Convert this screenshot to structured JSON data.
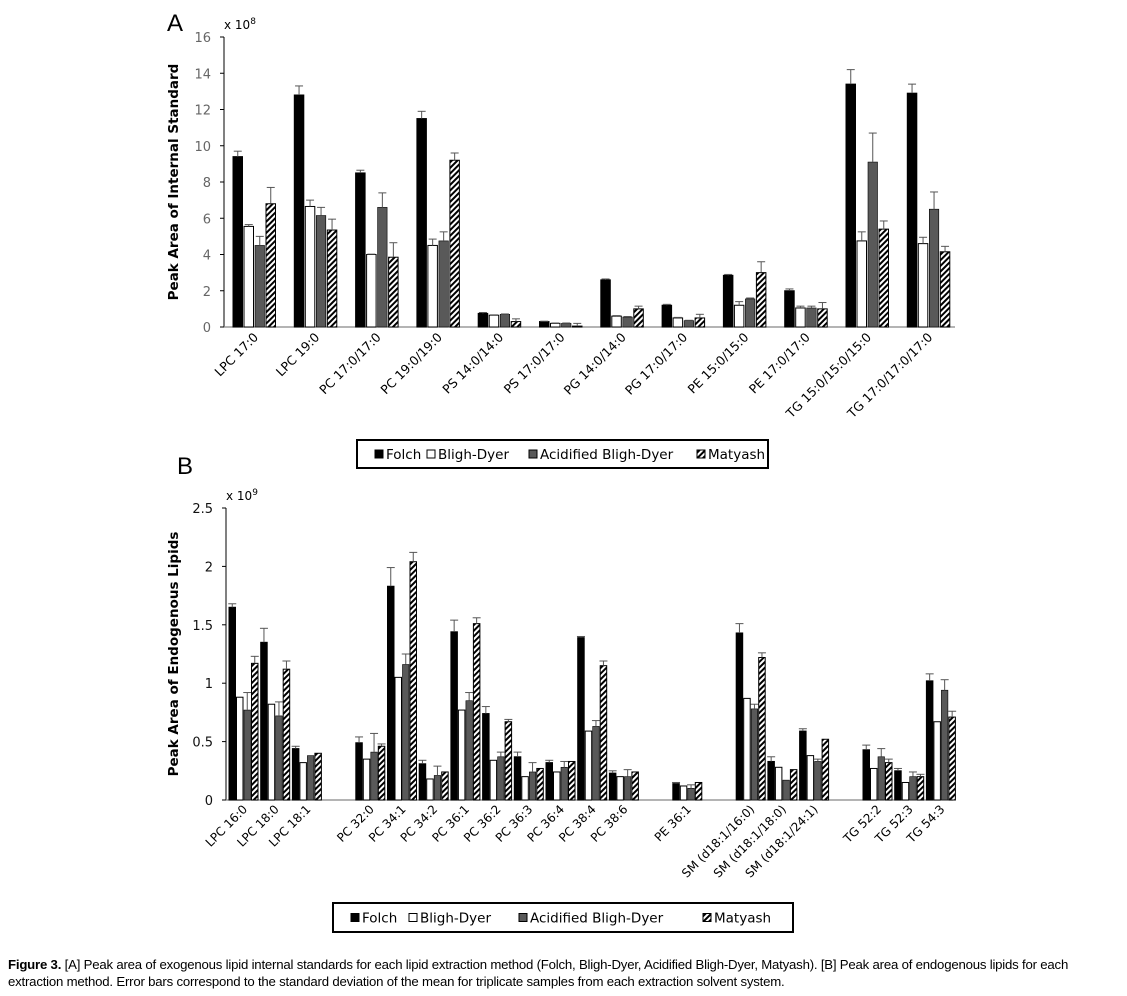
{
  "caption": {
    "label": "Figure 3.",
    "text": " [A] Peak area of exogenous lipid internal standards for each lipid extraction method (Folch, Bligh-Dyer, Acidified Bligh-Dyer, Matyash). [B] Peak area of endogenous lipids for each extraction method. Error bars correspond to the standard deviation of the mean for triplicate samples from each extraction solvent system."
  },
  "legend": {
    "entries": [
      "Folch",
      "Bligh-Dyer",
      "Acidified Bligh-Dyer",
      "Matyash"
    ]
  },
  "series_styles": [
    {
      "name": "Folch",
      "fill": "#000000"
    },
    {
      "name": "Bligh-Dyer",
      "fill": "#ffffff"
    },
    {
      "name": "Acidified Bligh-Dyer",
      "fill": "#595959"
    },
    {
      "name": "Matyash",
      "fill": "hatch"
    }
  ],
  "chart_data": [
    {
      "panel": "A",
      "type": "bar",
      "title": "",
      "ylabel": "Peak Area of Internal Standard",
      "xlabel": "",
      "y_multiplier": "x 10^8",
      "multiplier_base": "x 10",
      "multiplier_exp": "8",
      "ylim": [
        0,
        16
      ],
      "yticks": [
        "0",
        "2",
        "4",
        "6",
        "8",
        "10",
        "12",
        "14",
        "16"
      ],
      "grid": false,
      "legend_position": "bottom",
      "categories": [
        "LPC 17:0",
        "LPC 19:0",
        "PC 17:0/17:0",
        "PC 19:0/19:0",
        "PS 14:0/14:0",
        "PS 17:0/17:0",
        "PG 14:0/14:0",
        "PG 17:0/17:0",
        "PE 15:0/15:0",
        "PE 17:0/17:0",
        "TG 15:0/15:0/15:0",
        "TG 17:0/17:0/17:0"
      ],
      "series": [
        {
          "name": "Folch",
          "values": [
            9.4,
            12.8,
            8.5,
            11.5,
            0.75,
            0.3,
            2.6,
            1.2,
            2.85,
            2.0,
            13.4,
            12.9
          ],
          "errors": [
            0.3,
            0.5,
            0.15,
            0.4,
            0.05,
            0.02,
            0.05,
            0.05,
            0.05,
            0.1,
            0.8,
            0.5
          ]
        },
        {
          "name": "Bligh-Dyer",
          "values": [
            5.55,
            6.65,
            4.0,
            4.5,
            0.65,
            0.2,
            0.6,
            0.5,
            1.2,
            1.05,
            4.75,
            4.6
          ],
          "errors": [
            0.1,
            0.35,
            0.02,
            0.35,
            0.02,
            0.02,
            0.03,
            0.03,
            0.2,
            0.1,
            0.5,
            0.35
          ]
        },
        {
          "name": "Acidified Bligh-Dyer",
          "values": [
            4.5,
            6.15,
            6.6,
            4.75,
            0.7,
            0.2,
            0.55,
            0.35,
            1.55,
            1.05,
            9.1,
            6.5
          ],
          "errors": [
            0.5,
            0.45,
            0.8,
            0.5,
            0.02,
            0.02,
            0.03,
            0.02,
            0.05,
            0.1,
            1.6,
            0.95
          ]
        },
        {
          "name": "Matyash",
          "values": [
            6.8,
            5.35,
            3.85,
            9.2,
            0.3,
            0.05,
            1.0,
            0.5,
            3.0,
            1.0,
            5.4,
            4.15
          ],
          "errors": [
            0.9,
            0.6,
            0.8,
            0.4,
            0.15,
            0.15,
            0.15,
            0.2,
            0.6,
            0.35,
            0.45,
            0.3
          ]
        }
      ]
    },
    {
      "panel": "B",
      "type": "bar",
      "title": "",
      "ylabel": "Peak Area of Endogenous Lipids",
      "xlabel": "",
      "y_multiplier": "x 10^9",
      "multiplier_base": "x 10",
      "multiplier_exp": "9",
      "ylim": [
        0,
        2.5
      ],
      "yticks": [
        "0",
        "0.5",
        "1",
        "1.5",
        "2",
        "2.5"
      ],
      "grid": false,
      "legend_position": "bottom",
      "categories": [
        "LPC 16:0",
        "LPC 18:0",
        "LPC 18:1",
        "",
        "PC 32:0",
        "PC 34:1",
        "PC 34:2",
        "PC 36:1",
        "PC 36:2",
        "PC 36:3",
        "PC 36:4",
        "PC 38:4",
        "PC 38:6",
        "",
        "PE 36:1",
        "",
        "SM (d18:1/16:0)",
        "SM (d18:1/18:0)",
        "SM (d18:1/24:1)",
        "",
        "TG 52:2",
        "TG 52:3",
        "TG 54:3"
      ],
      "series": [
        {
          "name": "Folch",
          "values": [
            1.65,
            1.35,
            0.44,
            null,
            0.49,
            1.83,
            0.31,
            1.44,
            0.74,
            0.37,
            0.32,
            1.39,
            0.23,
            null,
            0.14,
            null,
            1.43,
            0.33,
            0.59,
            null,
            0.43,
            0.25,
            1.02
          ],
          "errors": [
            0.03,
            0.12,
            0.02,
            null,
            0.05,
            0.16,
            0.03,
            0.1,
            0.06,
            0.04,
            0.02,
            0.01,
            0.02,
            null,
            0.01,
            null,
            0.08,
            0.04,
            0.02,
            null,
            0.04,
            0.02,
            0.06
          ]
        },
        {
          "name": "Bligh-Dyer",
          "values": [
            0.88,
            0.82,
            0.32,
            null,
            0.35,
            1.05,
            0.18,
            0.77,
            0.34,
            0.2,
            0.24,
            0.59,
            0.2,
            null,
            0.12,
            null,
            0.87,
            0.28,
            0.38,
            null,
            0.27,
            0.15,
            0.67
          ]
        },
        {
          "name": "Acidified Bligh-Dyer",
          "values": [
            0.77,
            0.72,
            0.38,
            null,
            0.41,
            1.16,
            0.21,
            0.85,
            0.37,
            0.24,
            0.28,
            0.63,
            0.2,
            null,
            0.1,
            null,
            0.78,
            0.17,
            0.33,
            null,
            0.37,
            0.2,
            0.94
          ],
          "errors": [
            0.15,
            0.12,
            0.0,
            null,
            0.16,
            0.09,
            0.08,
            0.07,
            0.04,
            0.08,
            0.05,
            0.05,
            0.06,
            null,
            0.03,
            null,
            0.04,
            0.0,
            0.02,
            null,
            0.07,
            0.04,
            0.09
          ]
        },
        {
          "name": "Matyash",
          "values": [
            1.17,
            1.12,
            0.4,
            null,
            0.46,
            2.04,
            0.24,
            1.51,
            0.67,
            0.27,
            0.33,
            1.15,
            0.24,
            null,
            0.15,
            null,
            1.22,
            0.26,
            0.52,
            null,
            0.32,
            0.2,
            0.71
          ],
          "errors": [
            0.06,
            0.07,
            0.0,
            null,
            0.02,
            0.08,
            0.0,
            0.05,
            0.02,
            0.0,
            0.0,
            0.04,
            0.0,
            null,
            0.0,
            null,
            0.04,
            0.0,
            0.0,
            null,
            0.03,
            0.02,
            0.05
          ]
        }
      ]
    }
  ]
}
